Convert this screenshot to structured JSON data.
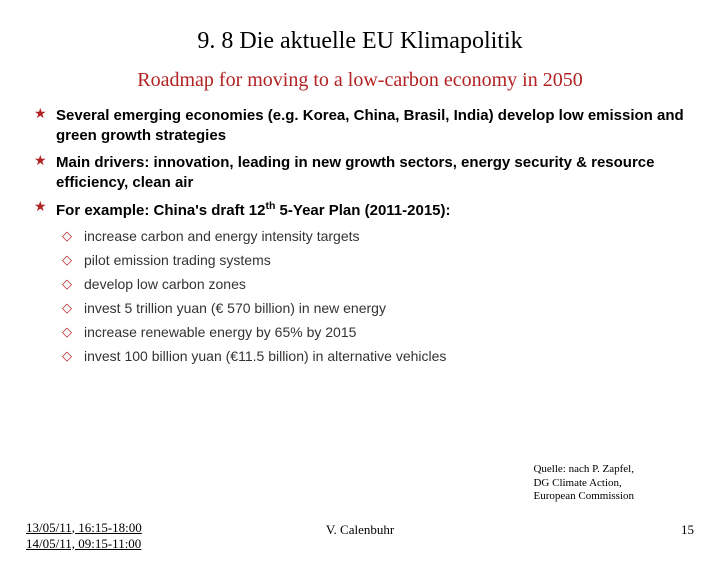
{
  "title": "9. 8 Die aktuelle EU Klimapolitik",
  "subtitle": "Roadmap for moving to a low-carbon economy in 2050",
  "bullets": {
    "b0": "Several emerging economies (e.g. Korea, China, Brasil, India) develop low emission and green growth strategies",
    "b1": "Main drivers: innovation, leading in new growth sectors, energy security & resource efficiency, clean air",
    "b2_pre": "For example: China's draft 12",
    "b2_sup": "th",
    "b2_post": " 5-Year Plan (2011-2015):"
  },
  "subs": {
    "s0": "increase carbon and energy intensity targets",
    "s1": "pilot emission trading systems",
    "s2": "develop low carbon zones",
    "s3": "invest 5 trillion yuan (€ 570 billion) in new energy",
    "s4": "increase renewable energy by 65% by 2015",
    "s5": "invest 100 billion yuan (€11.5 billion) in alternative vehicles"
  },
  "source": {
    "l1": "Quelle: nach P. Zapfel,",
    "l2": "DG Climate Action,",
    "l3": "European Commission"
  },
  "footer": {
    "date1": "13/05/11, 16:15-18:00",
    "date2": "14/05/11, 09:15-11:00",
    "author": "V. Calenbuhr",
    "page": "15"
  },
  "marks": {
    "star": "★",
    "diamond": "◇"
  },
  "colors": {
    "accent": "#b22222",
    "text": "#000000",
    "subtext": "#333333",
    "bg": "#ffffff"
  }
}
